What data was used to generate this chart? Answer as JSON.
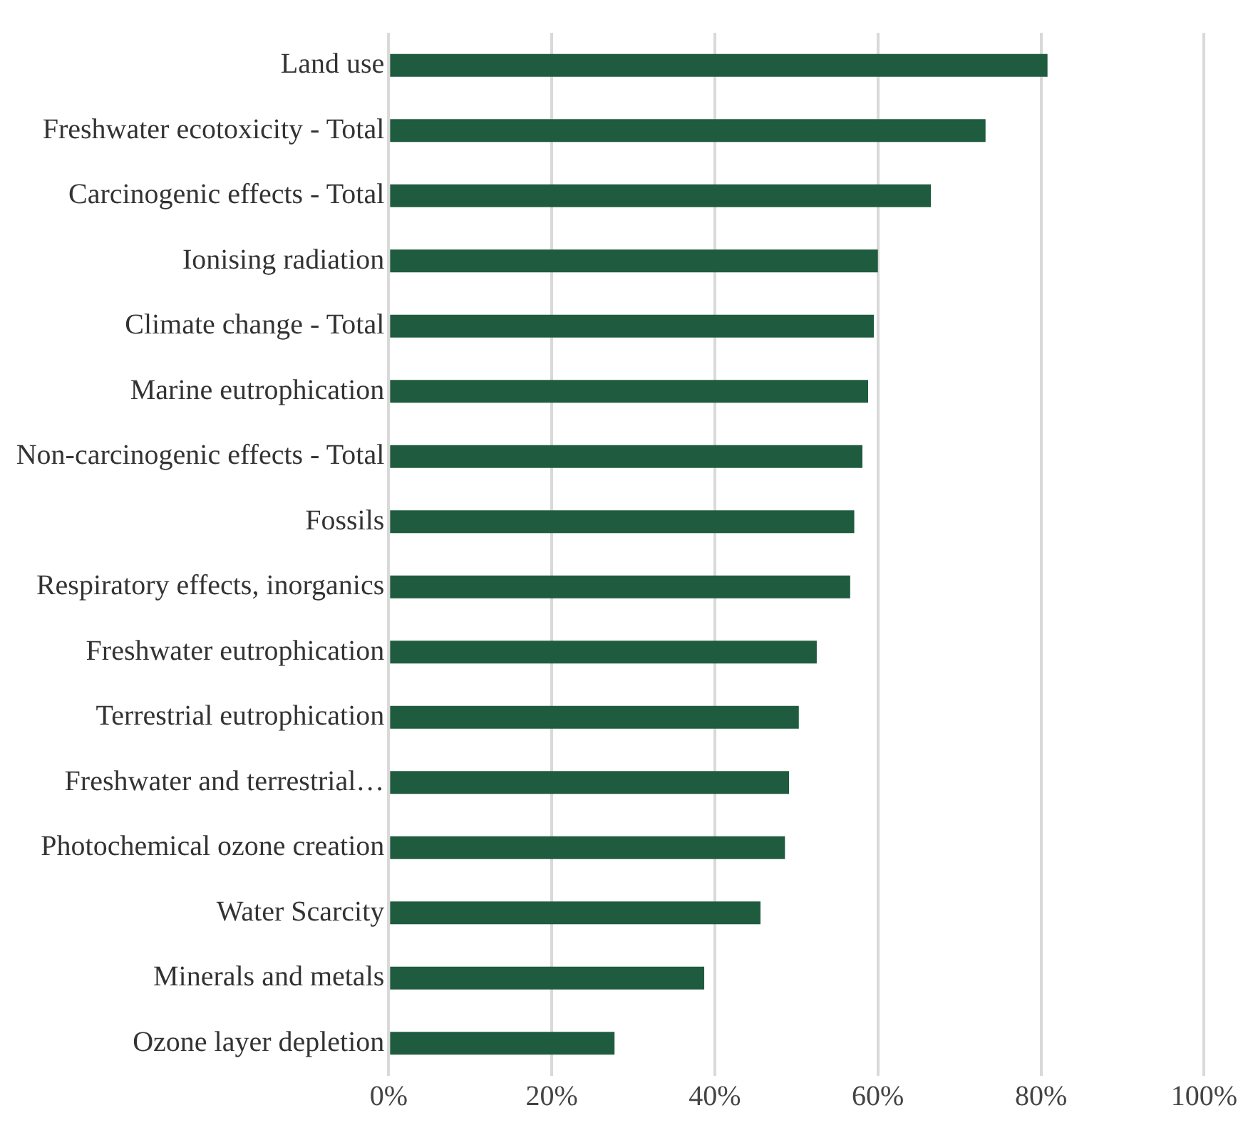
{
  "chart_data": {
    "type": "bar",
    "orientation": "horizontal",
    "categories": [
      "Land use",
      "Freshwater ecotoxicity - Total",
      "Carcinogenic effects - Total",
      "Ionising radiation",
      "Climate change - Total",
      "Marine eutrophication",
      "Non-carcinogenic effects - Total",
      "Fossils",
      "Respiratory effects, inorganics",
      "Freshwater eutrophication",
      "Terrestrial eutrophication",
      "Freshwater and terrestrial…",
      "Photochemical ozone creation",
      "Water Scarcity",
      "Minerals and metals",
      "Ozone layer depletion"
    ],
    "values": [
      80.8,
      73.2,
      66.5,
      60,
      59.5,
      58.8,
      58.1,
      57.1,
      56.6,
      52.5,
      50.3,
      49.1,
      48.6,
      45.6,
      38.7,
      27.7
    ],
    "color": "#1f5c3f",
    "xlim": [
      0,
      100
    ],
    "xticks": [
      {
        "value": 0,
        "label": "0%"
      },
      {
        "value": 20,
        "label": "20%"
      },
      {
        "value": 40,
        "label": "40%"
      },
      {
        "value": 60,
        "label": "60%"
      },
      {
        "value": 80,
        "label": "80%"
      },
      {
        "value": 100,
        "label": "100%"
      }
    ],
    "grid": "x",
    "legend": false
  }
}
